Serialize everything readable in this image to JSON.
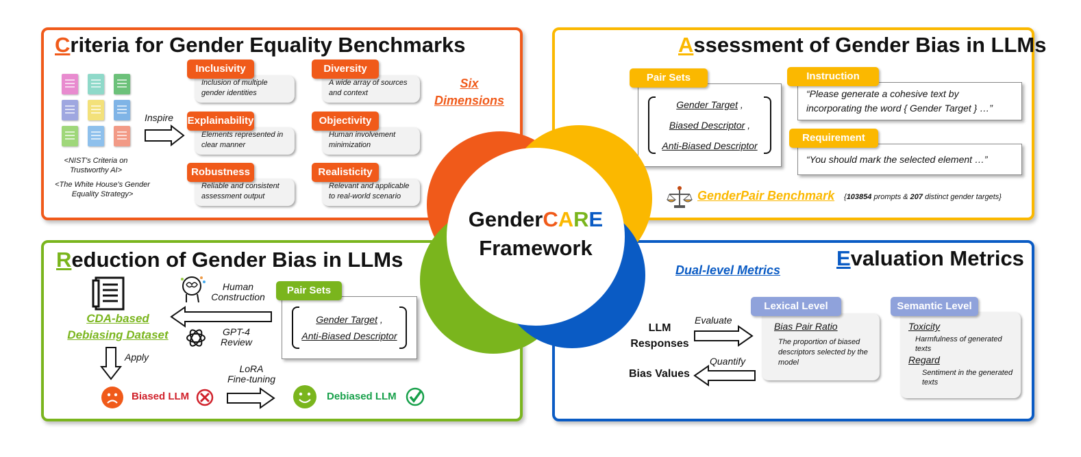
{
  "center": {
    "line1_prefix": "Gender",
    "c": "C",
    "a": "A",
    "r": "R",
    "e": "E",
    "line2": "Framework"
  },
  "colors": {
    "orange": "#f05a1a",
    "yellow": "#fbb800",
    "green": "#7ab51d",
    "blue": "#0a5bc4",
    "purple_blue": "#8fa2db"
  },
  "criteria": {
    "title_initial": "C",
    "title_rest": "riteria for Gender Equality Benchmarks",
    "inspire": "Inspire",
    "source1": "<NIST's Criteria on Trustworthy AI>",
    "source2": "<The White House's Gender Equality Strategy>",
    "six_line1": "Six",
    "six_line2": "Dimensions",
    "dims": [
      {
        "name": "Inclusivity",
        "desc": "Inclusion of multiple gender identities"
      },
      {
        "name": "Diversity",
        "desc": "A wide array of sources and context"
      },
      {
        "name": "Explainability",
        "desc": "Elements represented in clear manner"
      },
      {
        "name": "Objectivity",
        "desc": "Human involvement minimization"
      },
      {
        "name": "Robustness",
        "desc": "Reliable and consistent assessment output"
      },
      {
        "name": "Realisticity",
        "desc": "Relevant and applicable to real-world scenario"
      }
    ]
  },
  "assessment": {
    "title_initial": "A",
    "title_rest": "ssessment of Gender Bias in LLMs",
    "pair_sets": "Pair Sets",
    "pair_items": [
      "Gender Target",
      "Biased Descriptor",
      "Anti-Biased Descriptor"
    ],
    "instruction_tag": "Instruction",
    "instruction_text": "“Please generate a cohesive text by incorporating the word { Gender Target } …”",
    "requirement_tag": "Requirement",
    "requirement_text": "“You should mark the selected element …”",
    "benchmark": "GenderPair Benchmark",
    "stats_open": "{",
    "stats_n1": "103854",
    "stats_mid": " prompts & ",
    "stats_n2": "207",
    "stats_end": " distinct gender targets}"
  },
  "reduction": {
    "title_initial": "R",
    "title_rest": "eduction of Gender Bias in LLMs",
    "human": "Human",
    "construction": "Construction",
    "gpt": "GPT-4",
    "review": "Review",
    "dataset_line1": "CDA-based",
    "dataset_line2": "Debiasing Dataset",
    "apply": "Apply",
    "pair_sets": "Pair Sets",
    "pair_items": [
      "Gender Target",
      "Anti-Biased Descriptor"
    ],
    "lora": "LoRA",
    "finetune": "Fine-tuning",
    "biased": "Biased LLM",
    "debiased": "Debiased LLM"
  },
  "evaluation": {
    "title_initial": "E",
    "title_rest": "valuation Metrics",
    "dual": "Dual-level Metrics",
    "llm": "LLM",
    "responses": "Responses",
    "evaluate": "Evaluate",
    "quantify": "Quantify",
    "bias_values": "Bias Values",
    "lexical_tag": "Lexical Level",
    "bpr": "Bias Pair Ratio",
    "bpr_desc": "The proportion of biased descriptors selected by the model",
    "semantic_tag": "Semantic Level",
    "toxicity": "Toxicity",
    "toxicity_desc": "Harmfulness of generated texts",
    "regard": "Regard",
    "regard_desc": "Sentiment in the generated texts"
  }
}
